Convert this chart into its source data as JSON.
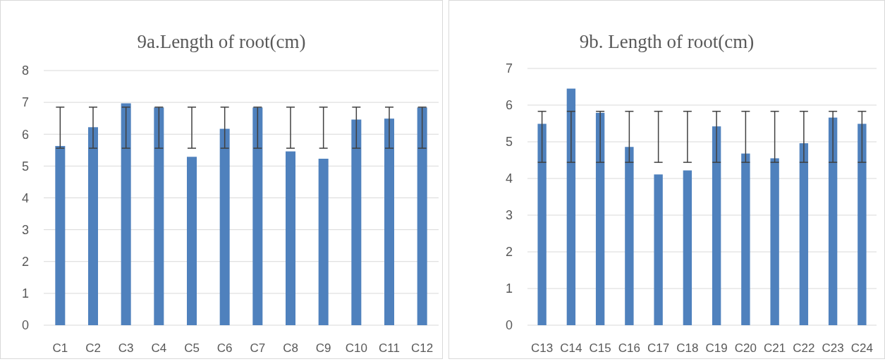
{
  "chart_data": [
    {
      "type": "bar",
      "title": "9a.Length of root(cm)",
      "categories": [
        "C1",
        "C2",
        "C3",
        "C4",
        "C5",
        "C6",
        "C7",
        "C8",
        "C9",
        "C10",
        "C11",
        "C12"
      ],
      "values": [
        5.63,
        6.22,
        6.97,
        6.84,
        5.29,
        6.17,
        6.84,
        5.46,
        5.23,
        6.46,
        6.49,
        6.84
      ],
      "errors": [
        [
          5.56,
          6.85
        ],
        [
          5.56,
          6.85
        ],
        [
          5.56,
          6.85
        ],
        [
          5.56,
          6.85
        ],
        [
          5.56,
          6.85
        ],
        [
          5.56,
          6.85
        ],
        [
          5.56,
          6.85
        ],
        [
          5.56,
          6.85
        ],
        [
          5.56,
          6.85
        ],
        [
          5.56,
          6.85
        ],
        [
          5.56,
          6.85
        ],
        [
          5.56,
          6.85
        ]
      ],
      "color": "#4f81bd",
      "ylim": [
        0,
        8
      ],
      "yticks": [
        0,
        1,
        2,
        3,
        4,
        5,
        6,
        7,
        8
      ],
      "grid": "y"
    },
    {
      "type": "bar",
      "title": "9b. Length of root(cm)",
      "categories": [
        "C13",
        "C14",
        "C15",
        "C16",
        "C17",
        "C18",
        "C19",
        "C20",
        "C21",
        "C22",
        "C23",
        "C24"
      ],
      "values": [
        5.49,
        6.45,
        5.79,
        4.86,
        4.11,
        4.22,
        5.42,
        4.68,
        4.55,
        4.96,
        5.66,
        5.49
      ],
      "errors": [
        [
          4.44,
          5.83
        ],
        [
          4.44,
          5.83
        ],
        [
          4.44,
          5.83
        ],
        [
          4.44,
          5.83
        ],
        [
          4.44,
          5.83
        ],
        [
          4.44,
          5.83
        ],
        [
          4.44,
          5.83
        ],
        [
          4.44,
          5.83
        ],
        [
          4.44,
          5.83
        ],
        [
          4.44,
          5.83
        ],
        [
          4.44,
          5.83
        ],
        [
          4.44,
          5.83
        ]
      ],
      "color": "#4f81bd",
      "ylim": [
        0,
        7
      ],
      "yticks": [
        0,
        1,
        2,
        3,
        4,
        5,
        6,
        7
      ],
      "grid": "y"
    }
  ]
}
